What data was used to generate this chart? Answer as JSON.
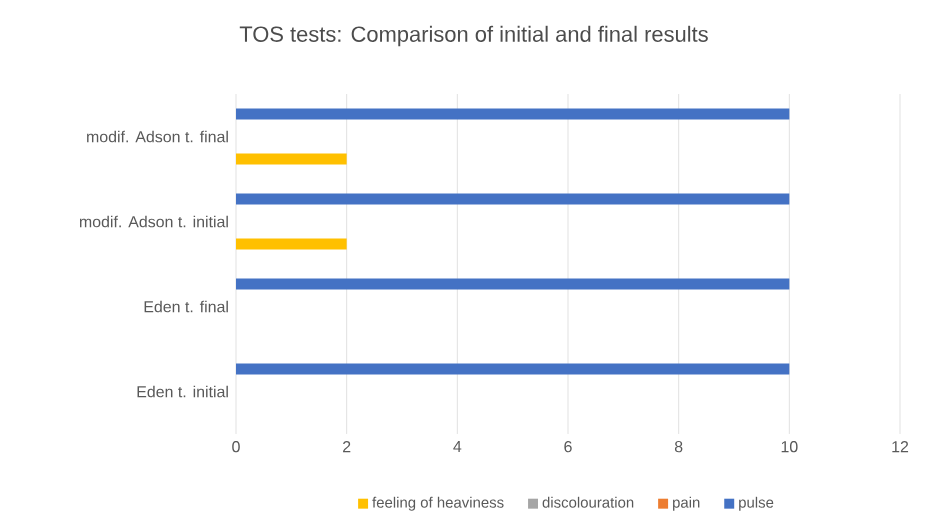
{
  "chart_data": {
    "type": "bar",
    "orientation": "horizontal",
    "title": "TOS tests: Comparison of initial and final results",
    "categories": [
      "modif. Adson t. final",
      "modif. Adson t. initial",
      "Eden t. final",
      "Eden t. initial"
    ],
    "series": [
      {
        "name": "feeling of heaviness",
        "color": "#ffc000",
        "values": [
          2,
          2,
          0,
          0
        ]
      },
      {
        "name": "discolouration",
        "color": "#a5a5a5",
        "values": [
          0,
          0,
          0,
          0
        ]
      },
      {
        "name": "pain",
        "color": "#ed7d31",
        "values": [
          0,
          0,
          0,
          0
        ]
      },
      {
        "name": "pulse",
        "color": "#4472c4",
        "values": [
          10,
          10,
          10,
          10
        ]
      }
    ],
    "xlim": [
      0,
      12
    ],
    "xticks": [
      0,
      2,
      4,
      6,
      8,
      10,
      12
    ],
    "grid": "x",
    "legend": "bottom"
  }
}
